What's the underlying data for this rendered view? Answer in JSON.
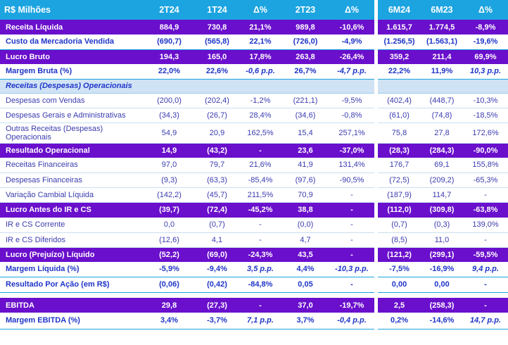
{
  "header": {
    "label": "R$ Milhões",
    "cols": [
      "2T24",
      "1T24",
      "Δ%",
      "2T23",
      "Δ%",
      "6M24",
      "6M23",
      "Δ%"
    ]
  },
  "rows": [
    {
      "label": "Receita Líquida",
      "vals": [
        "884,9",
        "730,8",
        "21,1%",
        "989,8",
        "-10,6%",
        "1.615,7",
        "1.774,5",
        "-8,9%"
      ]
    },
    {
      "label": "Custo da Mercadoria Vendida",
      "vals": [
        "(690,7)",
        "(565,8)",
        "22,1%",
        "(726,0)",
        "-4,9%",
        "(1.256,5)",
        "(1.563,1)",
        "-19,6%"
      ]
    },
    {
      "label": "Lucro Bruto",
      "vals": [
        "194,3",
        "165,0",
        "17,8%",
        "263,8",
        "-26,4%",
        "359,2",
        "211,4",
        "69,9%"
      ]
    },
    {
      "label": "Margem Bruta (%)",
      "vals": [
        "22,0%",
        "22,6%",
        "-0,6 p.p.",
        "26,7%",
        "-4,7 p.p.",
        "22,2%",
        "11,9%",
        "10,3 p.p."
      ]
    },
    {
      "label": "Receitas (Despesas) Operacionais",
      "vals": []
    },
    {
      "label": "Despesas com Vendas",
      "vals": [
        "(200,0)",
        "(202,4)",
        "-1,2%",
        "(221,1)",
        "-9,5%",
        "(402,4)",
        "(448,7)",
        "-10,3%"
      ]
    },
    {
      "label": "Despesas Gerais e Administrativas",
      "vals": [
        "(34,3)",
        "(26,7)",
        "28,4%",
        "(34,6)",
        "-0,8%",
        "(61,0)",
        "(74,8)",
        "-18,5%"
      ]
    },
    {
      "label": "Outras Receitas (Despesas) Operacionais",
      "vals": [
        "54,9",
        "20,9",
        "162,5%",
        "15,4",
        "257,1%",
        "75,8",
        "27,8",
        "172,6%"
      ]
    },
    {
      "label": "Resultado Operacional",
      "vals": [
        "14,9",
        "(43,2)",
        "-",
        "23,6",
        "-37,0%",
        "(28,3)",
        "(284,3)",
        "-90,0%"
      ]
    },
    {
      "label": "Receitas Financeiras",
      "vals": [
        "97,0",
        "79,7",
        "21,6%",
        "41,9",
        "131,4%",
        "176,7",
        "69,1",
        "155,8%"
      ]
    },
    {
      "label": "Despesas Financeiras",
      "vals": [
        "(9,3)",
        "(63,3)",
        "-85,4%",
        "(97,6)",
        "-90,5%",
        "(72,5)",
        "(209,2)",
        "-65,3%"
      ]
    },
    {
      "label": "Variação Cambial Líquida",
      "vals": [
        "(142,2)",
        "(45,7)",
        "211,5%",
        "70,9",
        "-",
        "(187,9)",
        "114,7",
        "-"
      ]
    },
    {
      "label": "Lucro Antes do IR e CS",
      "vals": [
        "(39,7)",
        "(72,4)",
        "-45,2%",
        "38,8",
        "-",
        "(112,0)",
        "(309,8)",
        "-63,8%"
      ]
    },
    {
      "label": "IR e CS Corrente",
      "vals": [
        "0,0",
        "(0,7)",
        "-",
        "(0,0)",
        "-",
        "(0,7)",
        "(0,3)",
        "139,0%"
      ]
    },
    {
      "label": "IR e CS Diferidos",
      "vals": [
        "(12,6)",
        "4,1",
        "-",
        "4,7",
        "-",
        "(8,5)",
        "11,0",
        "-"
      ]
    },
    {
      "label": "Lucro (Prejuízo) Líquido",
      "vals": [
        "(52,2)",
        "(69,0)",
        "-24,3%",
        "43,5",
        "-",
        "(121,2)",
        "(299,1)",
        "-59,5%"
      ]
    },
    {
      "label": "Margem Líquida (%)",
      "vals": [
        "-5,9%",
        "-9,4%",
        "3,5 p.p.",
        "4,4%",
        "-10,3 p.p.",
        "-7,5%",
        "-16,9%",
        "9,4 p.p."
      ]
    },
    {
      "label": "Resultado Por Ação (em R$)",
      "vals": [
        "(0,06)",
        "(0,42)",
        "-84,8%",
        "0,05",
        "-",
        "0,00",
        "0,00",
        "-"
      ]
    },
    {
      "label": "EBITDA",
      "vals": [
        "29,8",
        "(27,3)",
        "-",
        "37,0",
        "-19,7%",
        "2,5",
        "(258,3)",
        "-"
      ]
    },
    {
      "label": "Margem EBITDA (%)",
      "vals": [
        "3,4%",
        "-3,7%",
        "7,1 p.p.",
        "3,7%",
        "-0,4 p.p.",
        "0,2%",
        "-14,6%",
        "14,7 p.p."
      ]
    }
  ],
  "colors": {
    "header_bg": "#1ba4e0",
    "purple_row_bg": "#6a0fcc",
    "section_bg": "#cfe3f5",
    "blue_text": "#1f35c8",
    "body_text": "#3b3bb0"
  }
}
